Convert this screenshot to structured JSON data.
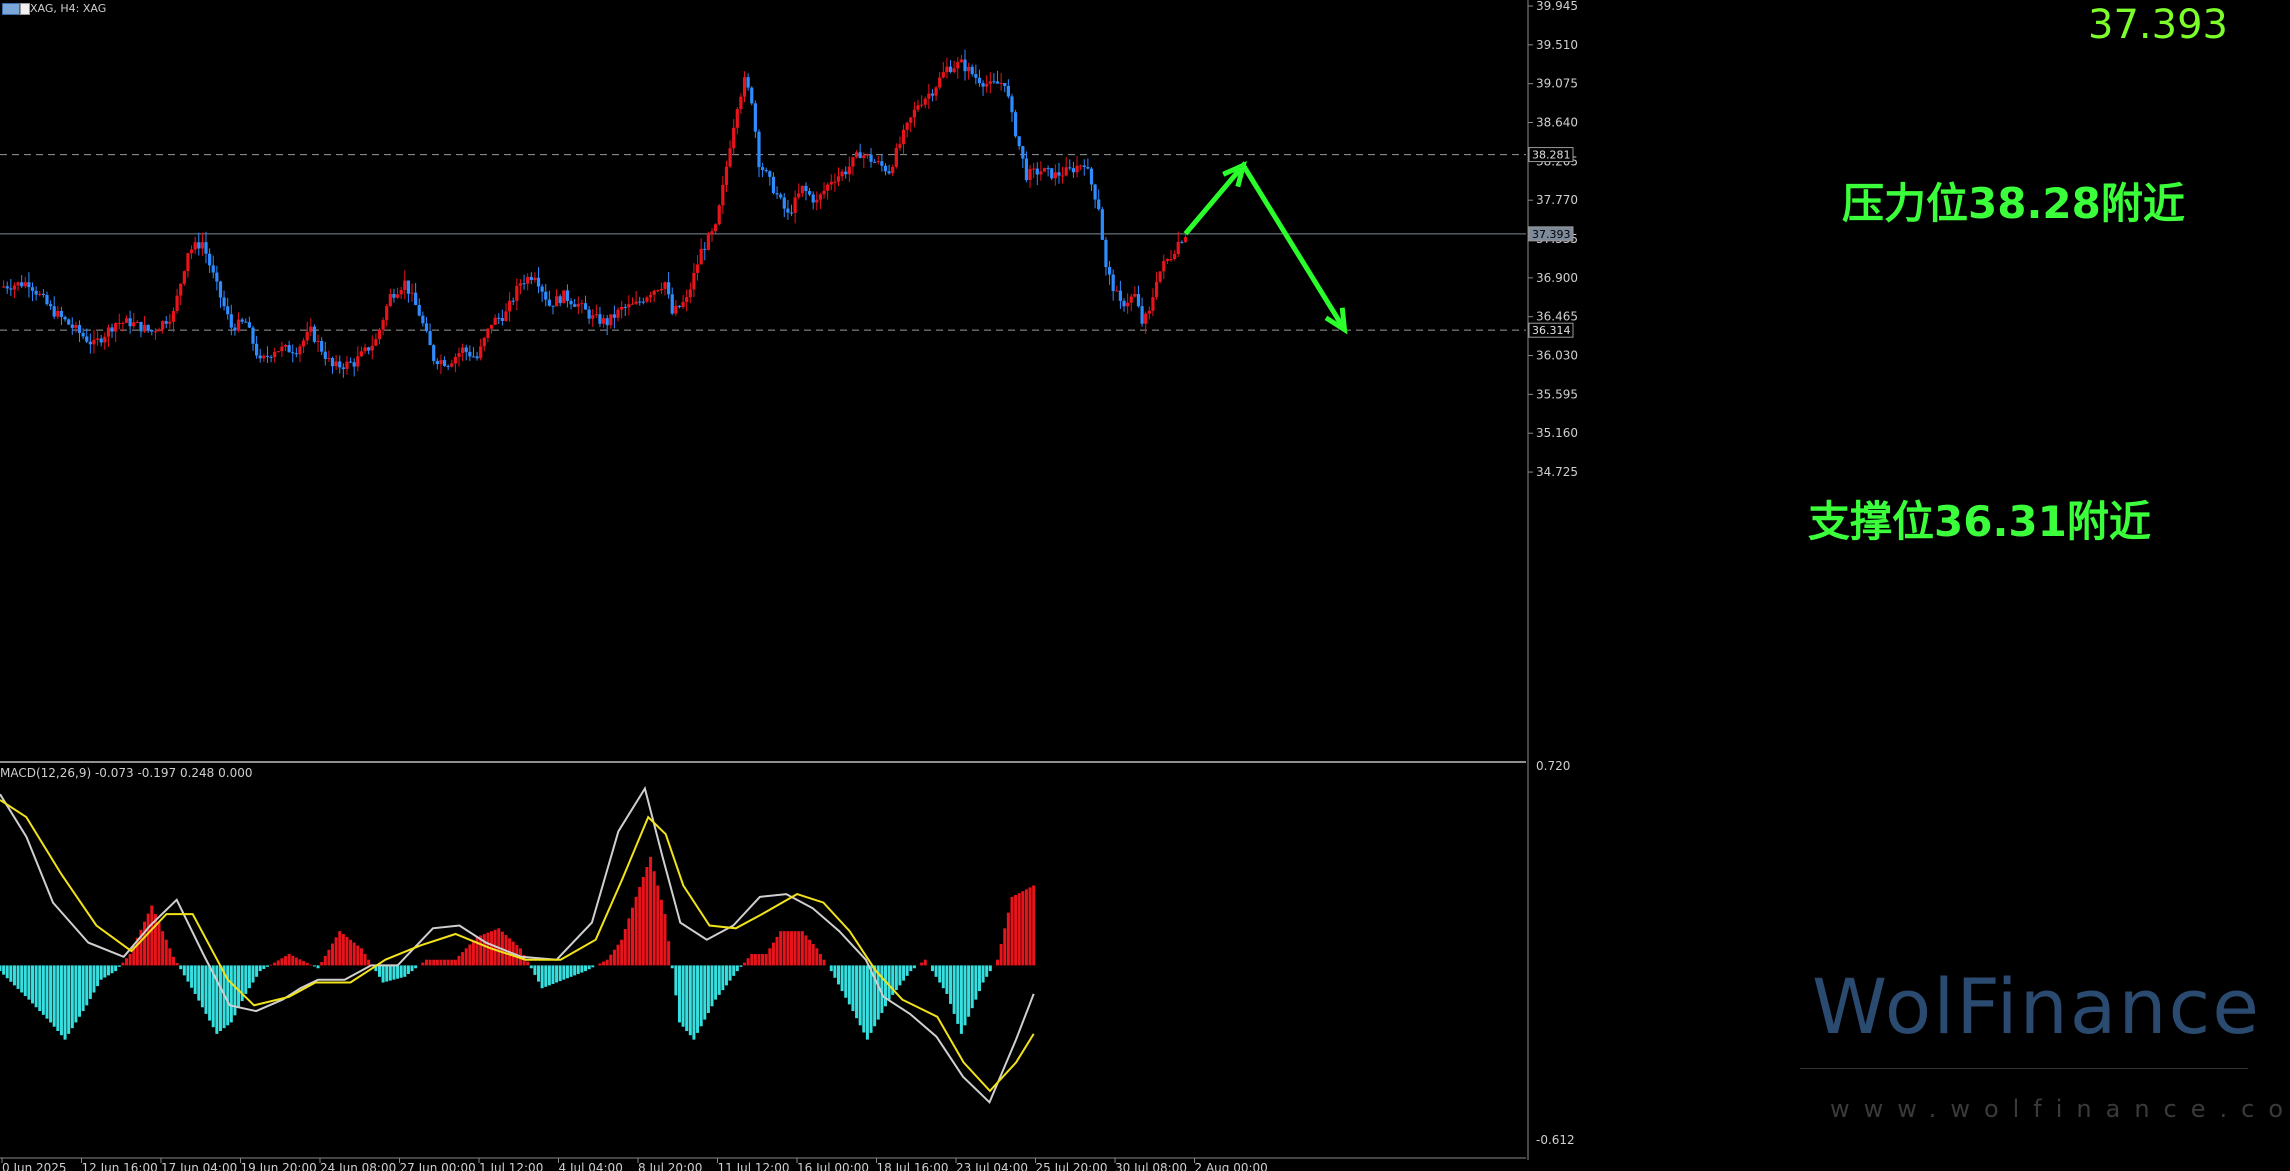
{
  "symbol_label": "XAG, H4: XAG",
  "price_readout": "37.393",
  "macd_label": "MACD(12,26,9) -0.073 -0.197 0.248 0.000",
  "annotations": {
    "resistance": "压力位38.28附近",
    "support": "支撑位36.31附近"
  },
  "watermark": {
    "brand": "WolFinance",
    "url": "www.wolfinance.com"
  },
  "chart_data": [
    {
      "type": "candlestick",
      "instrument": "XAG",
      "timeframe": "H4",
      "ylim": [
        34.3,
        39.945
      ],
      "y_ticks": [
        "39.945",
        "39.510",
        "39.075",
        "38.640",
        "38.205",
        "37.770",
        "37.335",
        "36.900",
        "36.465",
        "36.030",
        "35.595",
        "35.160",
        "34.725"
      ],
      "x_ticks": [
        "0 Jun 2025",
        "12 Jun 16:00",
        "17 Jun 04:00",
        "19 Jun 20:00",
        "24 Jun 08:00",
        "27 Jun 00:00",
        "1 Jul 12:00",
        "4 Jul 04:00",
        "8 Jul 20:00",
        "11 Jul 12:00",
        "16 Jul 00:00",
        "18 Jul 16:00",
        "23 Jul 04:00",
        "25 Jul 20:00",
        "30 Jul 08:00",
        "2 Aug 00:00"
      ],
      "levels": [
        {
          "label": "38.281",
          "value": 38.281,
          "style": "dashed"
        },
        {
          "label": "37.393",
          "value": 37.393,
          "style": "solid"
        },
        {
          "label": "36.314",
          "value": 36.314,
          "style": "dashed"
        }
      ],
      "close_path": [
        [
          0,
          36.8
        ],
        [
          8,
          36.85
        ],
        [
          14,
          36.55
        ],
        [
          20,
          36.35
        ],
        [
          26,
          36.15
        ],
        [
          32,
          36.4
        ],
        [
          36,
          36.4
        ],
        [
          42,
          36.3
        ],
        [
          48,
          36.5
        ],
        [
          52,
          37.2
        ],
        [
          56,
          37.3
        ],
        [
          60,
          36.8
        ],
        [
          64,
          36.35
        ],
        [
          68,
          36.4
        ],
        [
          72,
          35.95
        ],
        [
          76,
          36.1
        ],
        [
          82,
          36.1
        ],
        [
          86,
          36.3
        ],
        [
          92,
          35.9
        ],
        [
          98,
          35.95
        ],
        [
          104,
          36.2
        ],
        [
          108,
          36.7
        ],
        [
          112,
          36.85
        ],
        [
          116,
          36.5
        ],
        [
          120,
          36.0
        ],
        [
          124,
          35.95
        ],
        [
          128,
          36.1
        ],
        [
          132,
          36.0
        ],
        [
          136,
          36.4
        ],
        [
          140,
          36.5
        ],
        [
          144,
          36.85
        ],
        [
          148,
          36.95
        ],
        [
          152,
          36.6
        ],
        [
          156,
          36.7
        ],
        [
          160,
          36.6
        ],
        [
          164,
          36.45
        ],
        [
          168,
          36.4
        ],
        [
          172,
          36.55
        ],
        [
          176,
          36.6
        ],
        [
          180,
          36.75
        ],
        [
          184,
          36.85
        ],
        [
          186,
          36.5
        ],
        [
          190,
          36.65
        ],
        [
          194,
          37.2
        ],
        [
          198,
          37.45
        ],
        [
          200,
          37.9
        ],
        [
          202,
          38.4
        ],
        [
          204,
          38.85
        ],
        [
          206,
          39.1
        ],
        [
          208,
          38.9
        ],
        [
          210,
          38.2
        ],
        [
          214,
          37.9
        ],
        [
          218,
          37.6
        ],
        [
          222,
          37.9
        ],
        [
          226,
          37.75
        ],
        [
          230,
          38.0
        ],
        [
          234,
          38.1
        ],
        [
          238,
          38.3
        ],
        [
          242,
          38.2
        ],
        [
          246,
          38.1
        ],
        [
          250,
          38.5
        ],
        [
          254,
          38.85
        ],
        [
          258,
          39.0
        ],
        [
          262,
          39.25
        ],
        [
          266,
          39.3
        ],
        [
          270,
          39.15
        ],
        [
          274,
          39.05
        ],
        [
          278,
          39.1
        ],
        [
          280,
          38.7
        ],
        [
          284,
          38.05
        ],
        [
          288,
          38.1
        ],
        [
          292,
          38.05
        ],
        [
          296,
          38.1
        ],
        [
          300,
          38.2
        ],
        [
          304,
          37.7
        ],
        [
          306,
          37.0
        ],
        [
          308,
          36.8
        ],
        [
          310,
          36.6
        ],
        [
          314,
          36.7
        ],
        [
          316,
          36.4
        ],
        [
          318,
          36.5
        ],
        [
          320,
          36.9
        ],
        [
          322,
          37.05
        ],
        [
          324,
          37.15
        ],
        [
          326,
          37.3
        ],
        [
          328,
          37.393
        ]
      ],
      "forecast_arrow": [
        [
          328,
          37.393
        ],
        [
          344,
          38.16
        ],
        [
          372,
          36.32
        ]
      ]
    },
    {
      "type": "bar",
      "name": "MACD(12,26,9)",
      "ylim": [
        -0.612,
        0.72
      ],
      "y_ticks": [
        "0.720",
        "-0.612"
      ],
      "histogram": [
        [
          0,
          -0.02
        ],
        [
          8,
          -0.12
        ],
        [
          14,
          -0.2
        ],
        [
          18,
          -0.26
        ],
        [
          24,
          -0.14
        ],
        [
          28,
          -0.05
        ],
        [
          32,
          -0.02
        ],
        [
          36,
          0.04
        ],
        [
          42,
          0.21
        ],
        [
          48,
          0.03
        ],
        [
          54,
          -0.1
        ],
        [
          60,
          -0.24
        ],
        [
          64,
          -0.2
        ],
        [
          68,
          -0.1
        ],
        [
          72,
          -0.02
        ],
        [
          80,
          0.04
        ],
        [
          88,
          -0.01
        ],
        [
          94,
          0.12
        ],
        [
          100,
          0.06
        ],
        [
          106,
          -0.06
        ],
        [
          112,
          -0.04
        ],
        [
          118,
          0.02
        ],
        [
          126,
          0.02
        ],
        [
          132,
          0.1
        ],
        [
          138,
          0.13
        ],
        [
          144,
          0.06
        ],
        [
          150,
          -0.08
        ],
        [
          156,
          -0.05
        ],
        [
          162,
          -0.02
        ],
        [
          168,
          0.02
        ],
        [
          172,
          0.09
        ],
        [
          176,
          0.24
        ],
        [
          180,
          0.38
        ],
        [
          184,
          0.18
        ],
        [
          188,
          -0.2
        ],
        [
          192,
          -0.26
        ],
        [
          198,
          -0.12
        ],
        [
          204,
          -0.02
        ],
        [
          208,
          0.04
        ],
        [
          212,
          0.04
        ],
        [
          216,
          0.12
        ],
        [
          222,
          0.12
        ],
        [
          226,
          0.06
        ],
        [
          230,
          -0.02
        ],
        [
          236,
          -0.16
        ],
        [
          240,
          -0.26
        ],
        [
          246,
          -0.12
        ],
        [
          252,
          -0.02
        ],
        [
          256,
          0.02
        ],
        [
          262,
          -0.1
        ],
        [
          266,
          -0.24
        ],
        [
          272,
          -0.06
        ],
        [
          276,
          0.02
        ],
        [
          280,
          0.24
        ],
        [
          286,
          0.28
        ]
      ],
      "macd_line": [
        [
          0,
          0.6
        ],
        [
          6,
          0.45
        ],
        [
          12,
          0.22
        ],
        [
          20,
          0.08
        ],
        [
          28,
          0.03
        ],
        [
          34,
          0.14
        ],
        [
          40,
          0.23
        ],
        [
          46,
          0.04
        ],
        [
          52,
          -0.14
        ],
        [
          58,
          -0.16
        ],
        [
          64,
          -0.12
        ],
        [
          68,
          -0.08
        ],
        [
          72,
          -0.05
        ],
        [
          78,
          -0.05
        ],
        [
          84,
          0.0
        ],
        [
          90,
          0.0
        ],
        [
          98,
          0.13
        ],
        [
          104,
          0.14
        ],
        [
          110,
          0.08
        ],
        [
          118,
          0.03
        ],
        [
          126,
          0.02
        ],
        [
          134,
          0.15
        ],
        [
          140,
          0.47
        ],
        [
          146,
          0.62
        ],
        [
          150,
          0.38
        ],
        [
          154,
          0.15
        ],
        [
          160,
          0.09
        ],
        [
          166,
          0.14
        ],
        [
          172,
          0.24
        ],
        [
          178,
          0.25
        ],
        [
          184,
          0.2
        ],
        [
          190,
          0.12
        ],
        [
          196,
          0.02
        ],
        [
          200,
          -0.11
        ],
        [
          206,
          -0.17
        ],
        [
          212,
          -0.25
        ],
        [
          218,
          -0.39
        ],
        [
          224,
          -0.48
        ],
        [
          230,
          -0.26
        ],
        [
          234,
          -0.1
        ]
      ],
      "signal_line": [
        [
          0,
          0.58
        ],
        [
          6,
          0.52
        ],
        [
          14,
          0.32
        ],
        [
          22,
          0.14
        ],
        [
          30,
          0.05
        ],
        [
          38,
          0.18
        ],
        [
          44,
          0.18
        ],
        [
          52,
          -0.05
        ],
        [
          58,
          -0.14
        ],
        [
          66,
          -0.11
        ],
        [
          72,
          -0.06
        ],
        [
          80,
          -0.06
        ],
        [
          88,
          0.02
        ],
        [
          96,
          0.07
        ],
        [
          104,
          0.11
        ],
        [
          112,
          0.06
        ],
        [
          120,
          0.02
        ],
        [
          128,
          0.02
        ],
        [
          136,
          0.09
        ],
        [
          142,
          0.3
        ],
        [
          148,
          0.52
        ],
        [
          152,
          0.46
        ],
        [
          156,
          0.28
        ],
        [
          162,
          0.14
        ],
        [
          168,
          0.13
        ],
        [
          174,
          0.18
        ],
        [
          182,
          0.25
        ],
        [
          188,
          0.22
        ],
        [
          194,
          0.12
        ],
        [
          200,
          -0.02
        ],
        [
          206,
          -0.12
        ],
        [
          214,
          -0.18
        ],
        [
          220,
          -0.34
        ],
        [
          226,
          -0.44
        ],
        [
          232,
          -0.34
        ],
        [
          236,
          -0.24
        ]
      ]
    }
  ]
}
